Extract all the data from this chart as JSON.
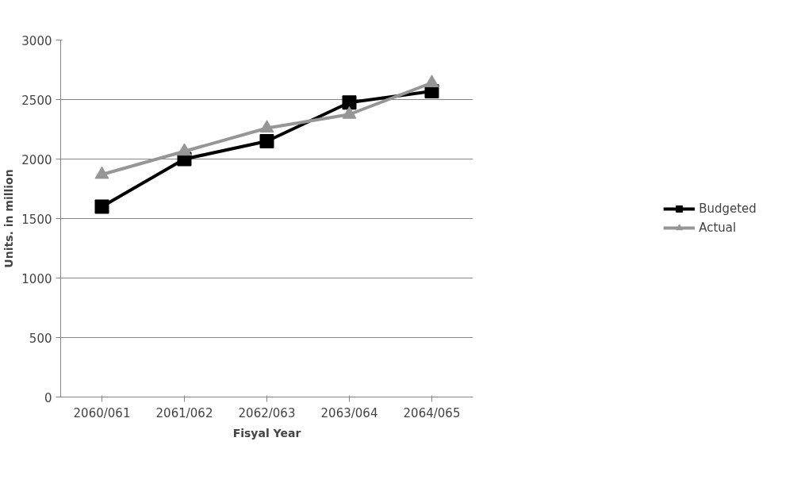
{
  "chart_data": {
    "type": "line",
    "xlabel": "Fisyal Year",
    "ylabel": "Units. in million",
    "categories": [
      "2060/061",
      "2061/062",
      "2062/063",
      "2063/064",
      "2064/065"
    ],
    "series": [
      {
        "name": "Budgeted",
        "color": "#000000",
        "marker": "square",
        "values": [
          1600,
          2000,
          2150,
          2475,
          2570
        ]
      },
      {
        "name": "Actual",
        "color": "#969696",
        "marker": "triangle",
        "values": [
          1870,
          2065,
          2260,
          2375,
          2640
        ]
      }
    ],
    "ylim": [
      0,
      3000
    ],
    "yticks": [
      0,
      500,
      1000,
      1500,
      2000,
      2500,
      3000
    ],
    "grid": "y",
    "legend": "right"
  }
}
